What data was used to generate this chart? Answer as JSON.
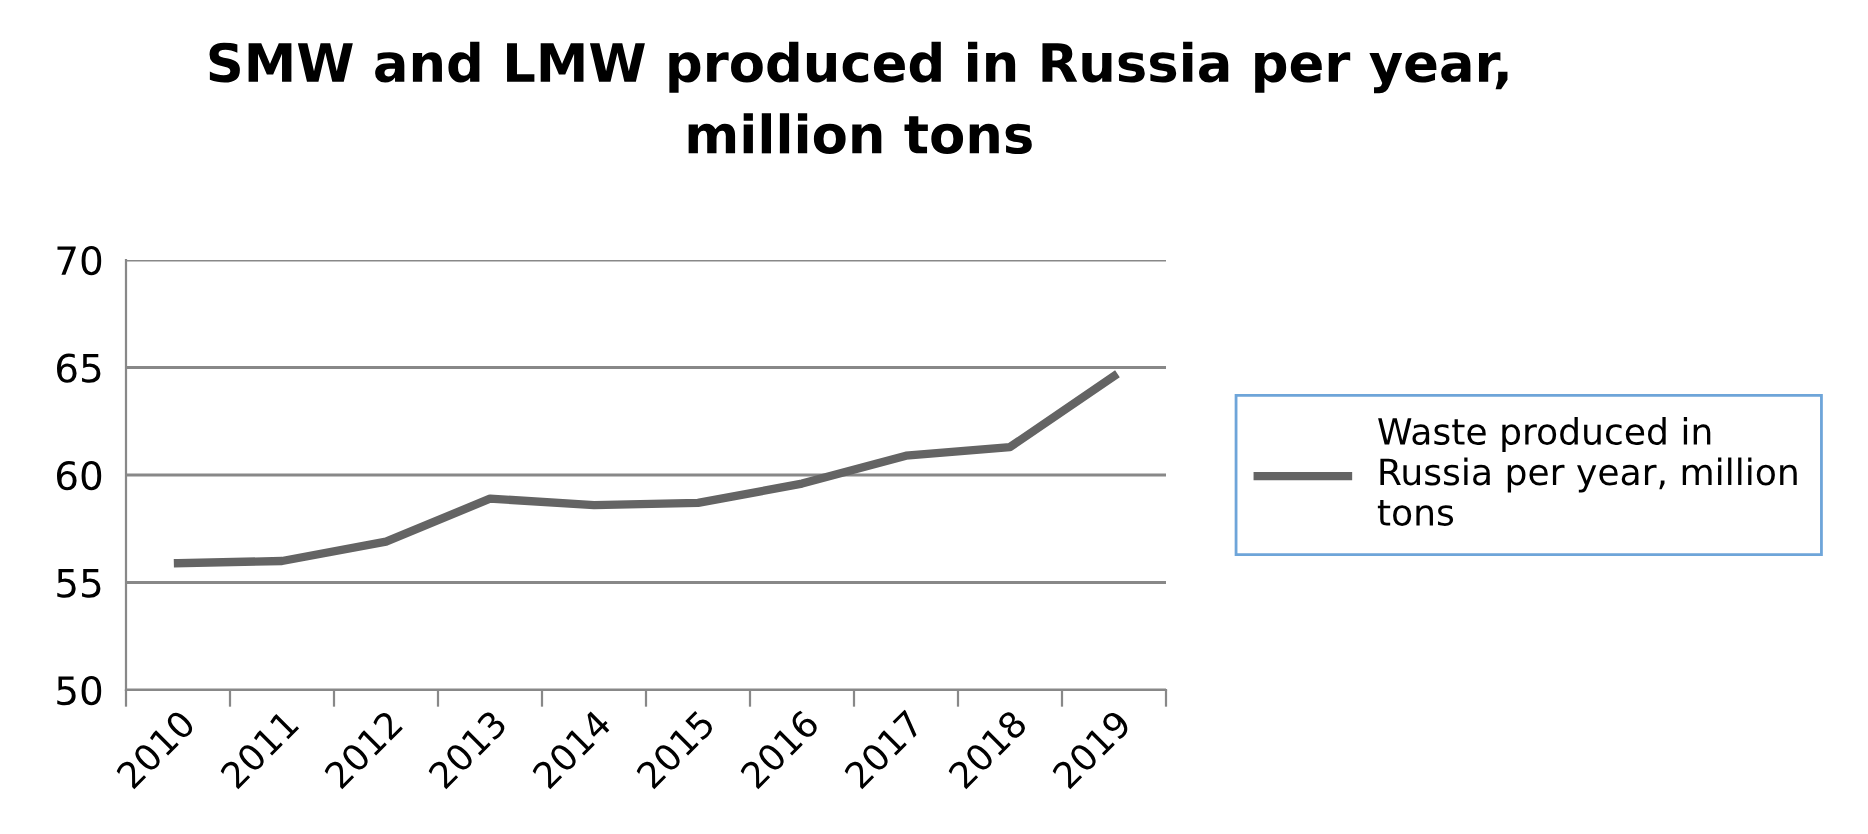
{
  "chart_data": {
    "type": "line",
    "title": "SMW and LMW produced in Russia per year,\nmillion tons",
    "categories": [
      "2010",
      "2011",
      "2012",
      "2013",
      "2014",
      "2015",
      "2016",
      "2017",
      "2018",
      "2019"
    ],
    "series": [
      {
        "name": "Waste produced in\nRussia per year, million\ntons",
        "color": "#646464",
        "values": [
          55.9,
          56.0,
          56.9,
          58.9,
          58.6,
          58.7,
          59.6,
          60.9,
          61.3,
          64.6
        ]
      }
    ],
    "ylim": [
      50,
      70
    ],
    "yticks": [
      50,
      55,
      60,
      65,
      70
    ],
    "grid": "y",
    "legend": "right",
    "marker": "none",
    "line_style": "solid"
  }
}
